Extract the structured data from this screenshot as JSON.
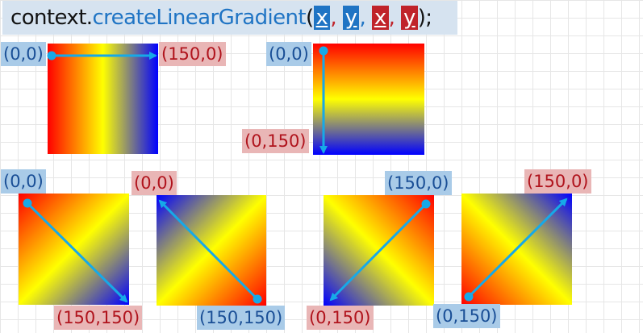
{
  "code": {
    "object": "context.",
    "method": "createLinearGradient",
    "open": "(",
    "p1": "x",
    "p2": "y",
    "p3": "x",
    "p4": "y",
    "comma": ",",
    "close": ");"
  },
  "colors": {
    "red": "#ff0000",
    "yellow": "#ffff00",
    "blue": "#0000ff",
    "arrow": "#16a9e8",
    "label_blue_bg": "#a9cbe8",
    "label_red_bg": "#e9b6b6"
  },
  "diagrams": [
    {
      "start_label": "(0,0)",
      "end_label": "(150,0)"
    },
    {
      "start_label": "(0,0)",
      "end_label": "(0,150)"
    },
    {
      "start_label": "(0,0)",
      "end_label": "(150,150)"
    },
    {
      "start_label": "(0,0)",
      "end_label": "(150,150)"
    },
    {
      "start_label": "(150,0)",
      "end_label": "(0,150)"
    },
    {
      "start_label": "(150,0)",
      "end_label": "(0,150)"
    }
  ]
}
